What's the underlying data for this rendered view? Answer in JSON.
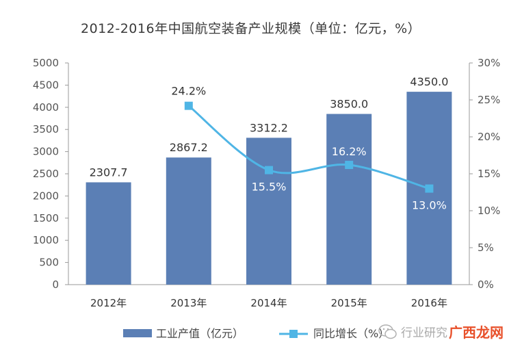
{
  "chart_data": {
    "type": "bar",
    "title": "2012-2016年中国航空装备产业规模（单位：亿元，%）",
    "categories": [
      "2012年",
      "2013年",
      "2014年",
      "2015年",
      "2016年"
    ],
    "series": [
      {
        "name": "工业产值（亿元）",
        "type": "bar",
        "axis": "left",
        "values": [
          2307.7,
          2867.2,
          3312.2,
          3850.0,
          4350.0
        ],
        "labels": [
          "2307.7",
          "2867.2",
          "3312.2",
          "3850.0",
          "4350.0"
        ],
        "color": "#5b7fb5"
      },
      {
        "name": "同比增长（%）",
        "type": "line",
        "axis": "right",
        "values": [
          null,
          24.2,
          15.5,
          16.2,
          13.0
        ],
        "labels": [
          "",
          "24.2%",
          "15.5%",
          "16.2%",
          "13.0%"
        ],
        "color": "#4fb5e5"
      }
    ],
    "y_left": {
      "min": 0,
      "max": 5000,
      "ticks": [
        "0",
        "500",
        "1000",
        "1500",
        "2000",
        "2500",
        "3000",
        "3500",
        "4000",
        "4500",
        "5000"
      ]
    },
    "y_right": {
      "min": 0,
      "max": 30,
      "ticks": [
        "0%",
        "5%",
        "10%",
        "15%",
        "20%",
        "25%",
        "30%"
      ]
    },
    "grid": false,
    "legend_position": "bottom"
  },
  "watermark": {
    "text1": "行业研究",
    "text2": "广西龙网"
  }
}
